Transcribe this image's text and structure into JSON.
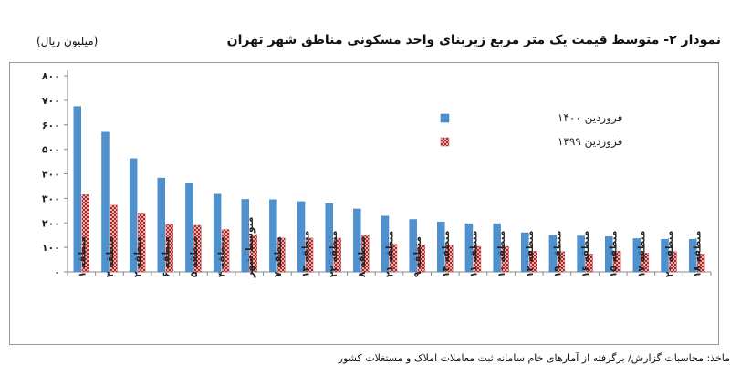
{
  "title": "نمودار ۲- متوسط قیمت یک متر مربع زیربنای واحد مسکونی مناطق شهر تهران",
  "unit": "(میلیون ریال)",
  "source": "ماخذ: محاسبات گزارش/ برگرفته از آمارهای خام سامانه ثبت معاملات املاک و مستغلات کشور",
  "chart_data": {
    "type": "bar",
    "ylim": [
      0,
      800
    ],
    "yticks": [
      "۰",
      "۱۰۰",
      "۲۰۰",
      "۳۰۰",
      "۴۰۰",
      "۵۰۰",
      "۶۰۰",
      "۷۰۰",
      "۸۰۰"
    ],
    "grid": false,
    "legend_position": "top-right",
    "categories": [
      "منطقه ۱",
      "منطقه ۳",
      "منطقه ۲",
      "منطقه ۶",
      "منطقه ۵",
      "منطقه ۴",
      "متوسط شهر",
      "منطقه ۷",
      "منطقه ۱۳",
      "منطقه ۲۲",
      "منطقه ۸",
      "منطقه ۲۱",
      "منطقه ۹",
      "منطقه ۱۴",
      "منطقه ۱۱",
      "منطقه ۱۰",
      "منطقه ۱۲",
      "منطقه ۱۹",
      "منطقه ۱۶",
      "منطقه ۱۵",
      "منطقه ۱۷",
      "منطقه ۲۰",
      "منطقه ۱۸"
    ],
    "series": [
      {
        "name": "فروردین ۱۴۰۰",
        "color": "#4f90cf",
        "pattern": "solid",
        "values": [
          675,
          570,
          462,
          383,
          364,
          317,
          296,
          295,
          287,
          278,
          257,
          228,
          214,
          204,
          197,
          197,
          160,
          150,
          147,
          144,
          136,
          133,
          133
        ]
      },
      {
        "name": "فروردین ۱۳۹۹",
        "color": "#c0392b",
        "pattern": "dotted",
        "values": [
          315,
          272,
          240,
          195,
          190,
          173,
          150,
          138,
          138,
          138,
          150,
          113,
          110,
          110,
          104,
          104,
          84,
          83,
          73,
          84,
          77,
          83,
          73
        ]
      }
    ]
  }
}
